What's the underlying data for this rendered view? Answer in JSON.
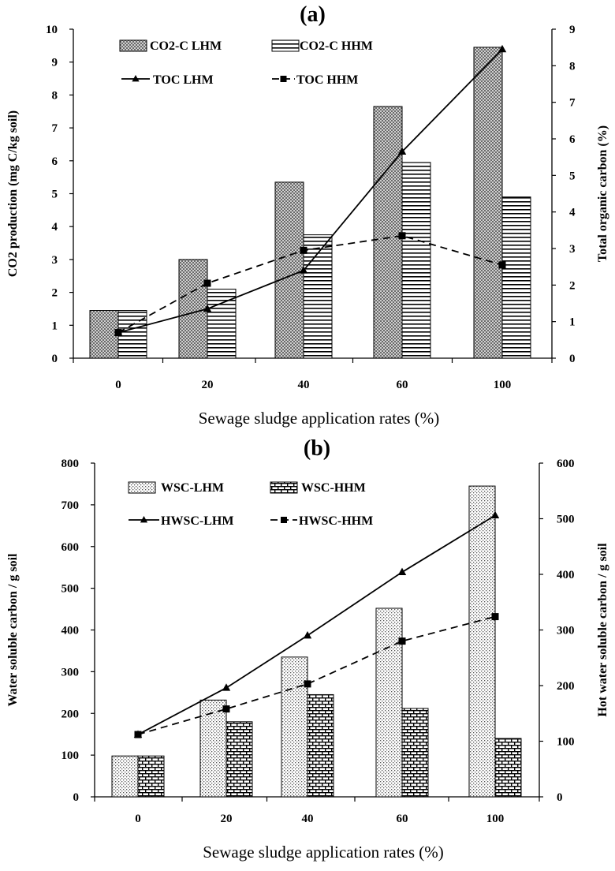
{
  "chart_data": [
    {
      "type": "bar",
      "panel_label": "(a)",
      "categories": [
        "0",
        "20",
        "40",
        "60",
        "100"
      ],
      "xlabel": "Sewage sludge application rates (%)",
      "ylabel": "CO2 production (mg C/kg soil)",
      "ylabel_right": "Total organic carbon (%)",
      "ylim": [
        0,
        10
      ],
      "ylim_right": [
        0,
        9
      ],
      "yticks": [
        "0",
        "1",
        "2",
        "3",
        "4",
        "5",
        "6",
        "7",
        "8",
        "9",
        "10"
      ],
      "yticks_right": [
        "0",
        "1",
        "2",
        "3",
        "4",
        "5",
        "6",
        "7",
        "8",
        "9"
      ],
      "series": [
        {
          "name": "CO2-C LHM",
          "kind": "bar",
          "pattern": "dots",
          "values": [
            1.45,
            3.0,
            5.35,
            7.65,
            9.45
          ]
        },
        {
          "name": "CO2-C HHM",
          "kind": "bar",
          "pattern": "hlines",
          "values": [
            1.45,
            2.1,
            3.75,
            5.95,
            4.9
          ]
        },
        {
          "name": "TOC LHM",
          "kind": "line",
          "axis": "right",
          "marker": "triangle",
          "dash": "solid",
          "values": [
            0.7,
            1.35,
            2.4,
            5.65,
            8.45
          ]
        },
        {
          "name": "TOC HHM",
          "kind": "line",
          "axis": "right",
          "marker": "square",
          "dash": "dashed",
          "values": [
            0.7,
            2.05,
            2.95,
            3.35,
            2.55
          ]
        }
      ],
      "legend": "top-left",
      "grid": false
    },
    {
      "type": "bar",
      "panel_label": "(b)",
      "categories": [
        "0",
        "20",
        "40",
        "60",
        "100"
      ],
      "xlabel": "Sewage sludge application rates (%)",
      "ylabel": "Water soluble carbon / g soil",
      "ylabel_right": "Hot water soluble carbon / g soil",
      "ylim": [
        0,
        800
      ],
      "ylim_right": [
        0,
        600
      ],
      "yticks": [
        "0",
        "100",
        "200",
        "300",
        "400",
        "500",
        "600",
        "700",
        "800"
      ],
      "yticks_right": [
        "0",
        "100",
        "200",
        "300",
        "400",
        "500",
        "600"
      ],
      "series": [
        {
          "name": "WSC-LHM",
          "kind": "bar",
          "pattern": "fine-dots",
          "values": [
            98,
            232,
            335,
            452,
            745
          ]
        },
        {
          "name": "WSC-HHM",
          "kind": "bar",
          "pattern": "bricks",
          "values": [
            98,
            180,
            245,
            212,
            140
          ]
        },
        {
          "name": "HWSC-LHM",
          "kind": "line",
          "axis": "right",
          "marker": "triangle",
          "dash": "solid",
          "values": [
            112,
            196,
            290,
            404,
            506
          ]
        },
        {
          "name": "HWSC-HHM",
          "kind": "line",
          "axis": "right",
          "marker": "square",
          "dash": "dashed",
          "values": [
            112,
            158,
            203,
            280,
            324
          ]
        }
      ],
      "legend": "top-left",
      "grid": false
    }
  ]
}
